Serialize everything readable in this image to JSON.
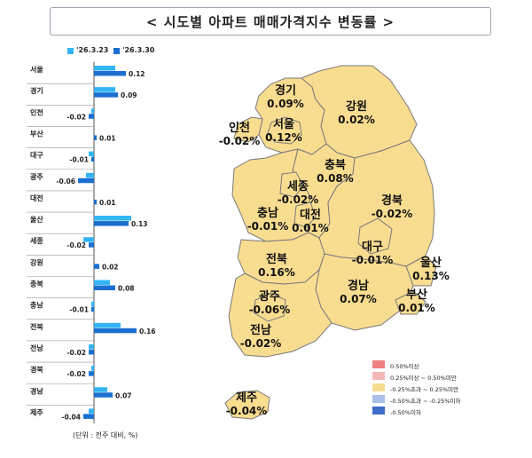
{
  "header": {
    "title": "< 시도별 아파트 매매가격지수 변동률 >"
  },
  "chart_data": {
    "type": "bar",
    "orientation": "horizontal",
    "categories": [
      "서울",
      "경기",
      "인천",
      "부산",
      "대구",
      "광주",
      "대전",
      "울산",
      "세종",
      "강원",
      "충북",
      "충남",
      "전북",
      "전남",
      "경북",
      "경남",
      "제주"
    ],
    "series": [
      {
        "name": "'26.3.23",
        "color": "#33b5f5",
        "values": [
          0.08,
          0.08,
          -0.01,
          0.0,
          -0.02,
          -0.03,
          0.0,
          0.14,
          -0.04,
          0.0,
          0.06,
          -0.01,
          0.1,
          -0.02,
          -0.01,
          0.05,
          -0.02
        ]
      },
      {
        "name": "'26.3.30",
        "color": "#1a6fd0",
        "values": [
          0.12,
          0.09,
          -0.02,
          0.01,
          -0.01,
          -0.06,
          0.01,
          0.13,
          -0.02,
          0.02,
          0.08,
          -0.01,
          0.16,
          -0.02,
          -0.02,
          0.07,
          -0.04
        ]
      }
    ],
    "value_labels": [
      "0.12",
      "0.09",
      "-0.02",
      "0.01",
      "-0.01",
      "-0.06",
      "0.01",
      "0.13",
      "-0.02",
      "0.02",
      "0.08",
      "-0.01",
      "0.16",
      "-0.02",
      "-0.02",
      "0.07",
      "-0.04"
    ],
    "unit_note": "(단위 : 전주 대비, %)"
  },
  "map": {
    "regions": [
      {
        "id": "gyeonggi",
        "name": "경기",
        "value": "0.09%"
      },
      {
        "id": "incheon",
        "name": "인천",
        "value": "-0.02%"
      },
      {
        "id": "seoul",
        "name": "서울",
        "value": "0.12%"
      },
      {
        "id": "gangwon",
        "name": "강원",
        "value": "0.02%"
      },
      {
        "id": "chungbuk",
        "name": "충북",
        "value": "0.08%"
      },
      {
        "id": "sejong",
        "name": "세종",
        "value": "-0.02%"
      },
      {
        "id": "chungnam",
        "name": "충남",
        "value": "-0.01%"
      },
      {
        "id": "daejeon",
        "name": "대전",
        "value": "0.01%"
      },
      {
        "id": "gyeongbuk",
        "name": "경북",
        "value": "-0.02%"
      },
      {
        "id": "daegu",
        "name": "대구",
        "value": "-0.01%"
      },
      {
        "id": "jeonbuk",
        "name": "전북",
        "value": "0.16%"
      },
      {
        "id": "ulsan",
        "name": "울산",
        "value": "0.13%"
      },
      {
        "id": "gwangju",
        "name": "광주",
        "value": "-0.06%"
      },
      {
        "id": "gyeongnam",
        "name": "경남",
        "value": "0.07%"
      },
      {
        "id": "busan",
        "name": "부산",
        "value": "0.01%"
      },
      {
        "id": "jeonnam",
        "name": "전남",
        "value": "-0.02%"
      },
      {
        "id": "jeju",
        "name": "제주",
        "value": "-0.04%"
      }
    ],
    "fill_color": "#f8dc90",
    "legend": [
      {
        "label": "0.50%이상",
        "color": "#f08080"
      },
      {
        "label": "0.25%이상 ~ 0.50%미만",
        "color": "#f5b8b8"
      },
      {
        "label": "-0.25%초과 ~ 0.25%미만",
        "color": "#f8dc90"
      },
      {
        "label": "-0.50%초과 ~ -0.25%이하",
        "color": "#a9bfe8"
      },
      {
        "label": "-0.50%이하",
        "color": "#3d6cc9"
      }
    ]
  }
}
